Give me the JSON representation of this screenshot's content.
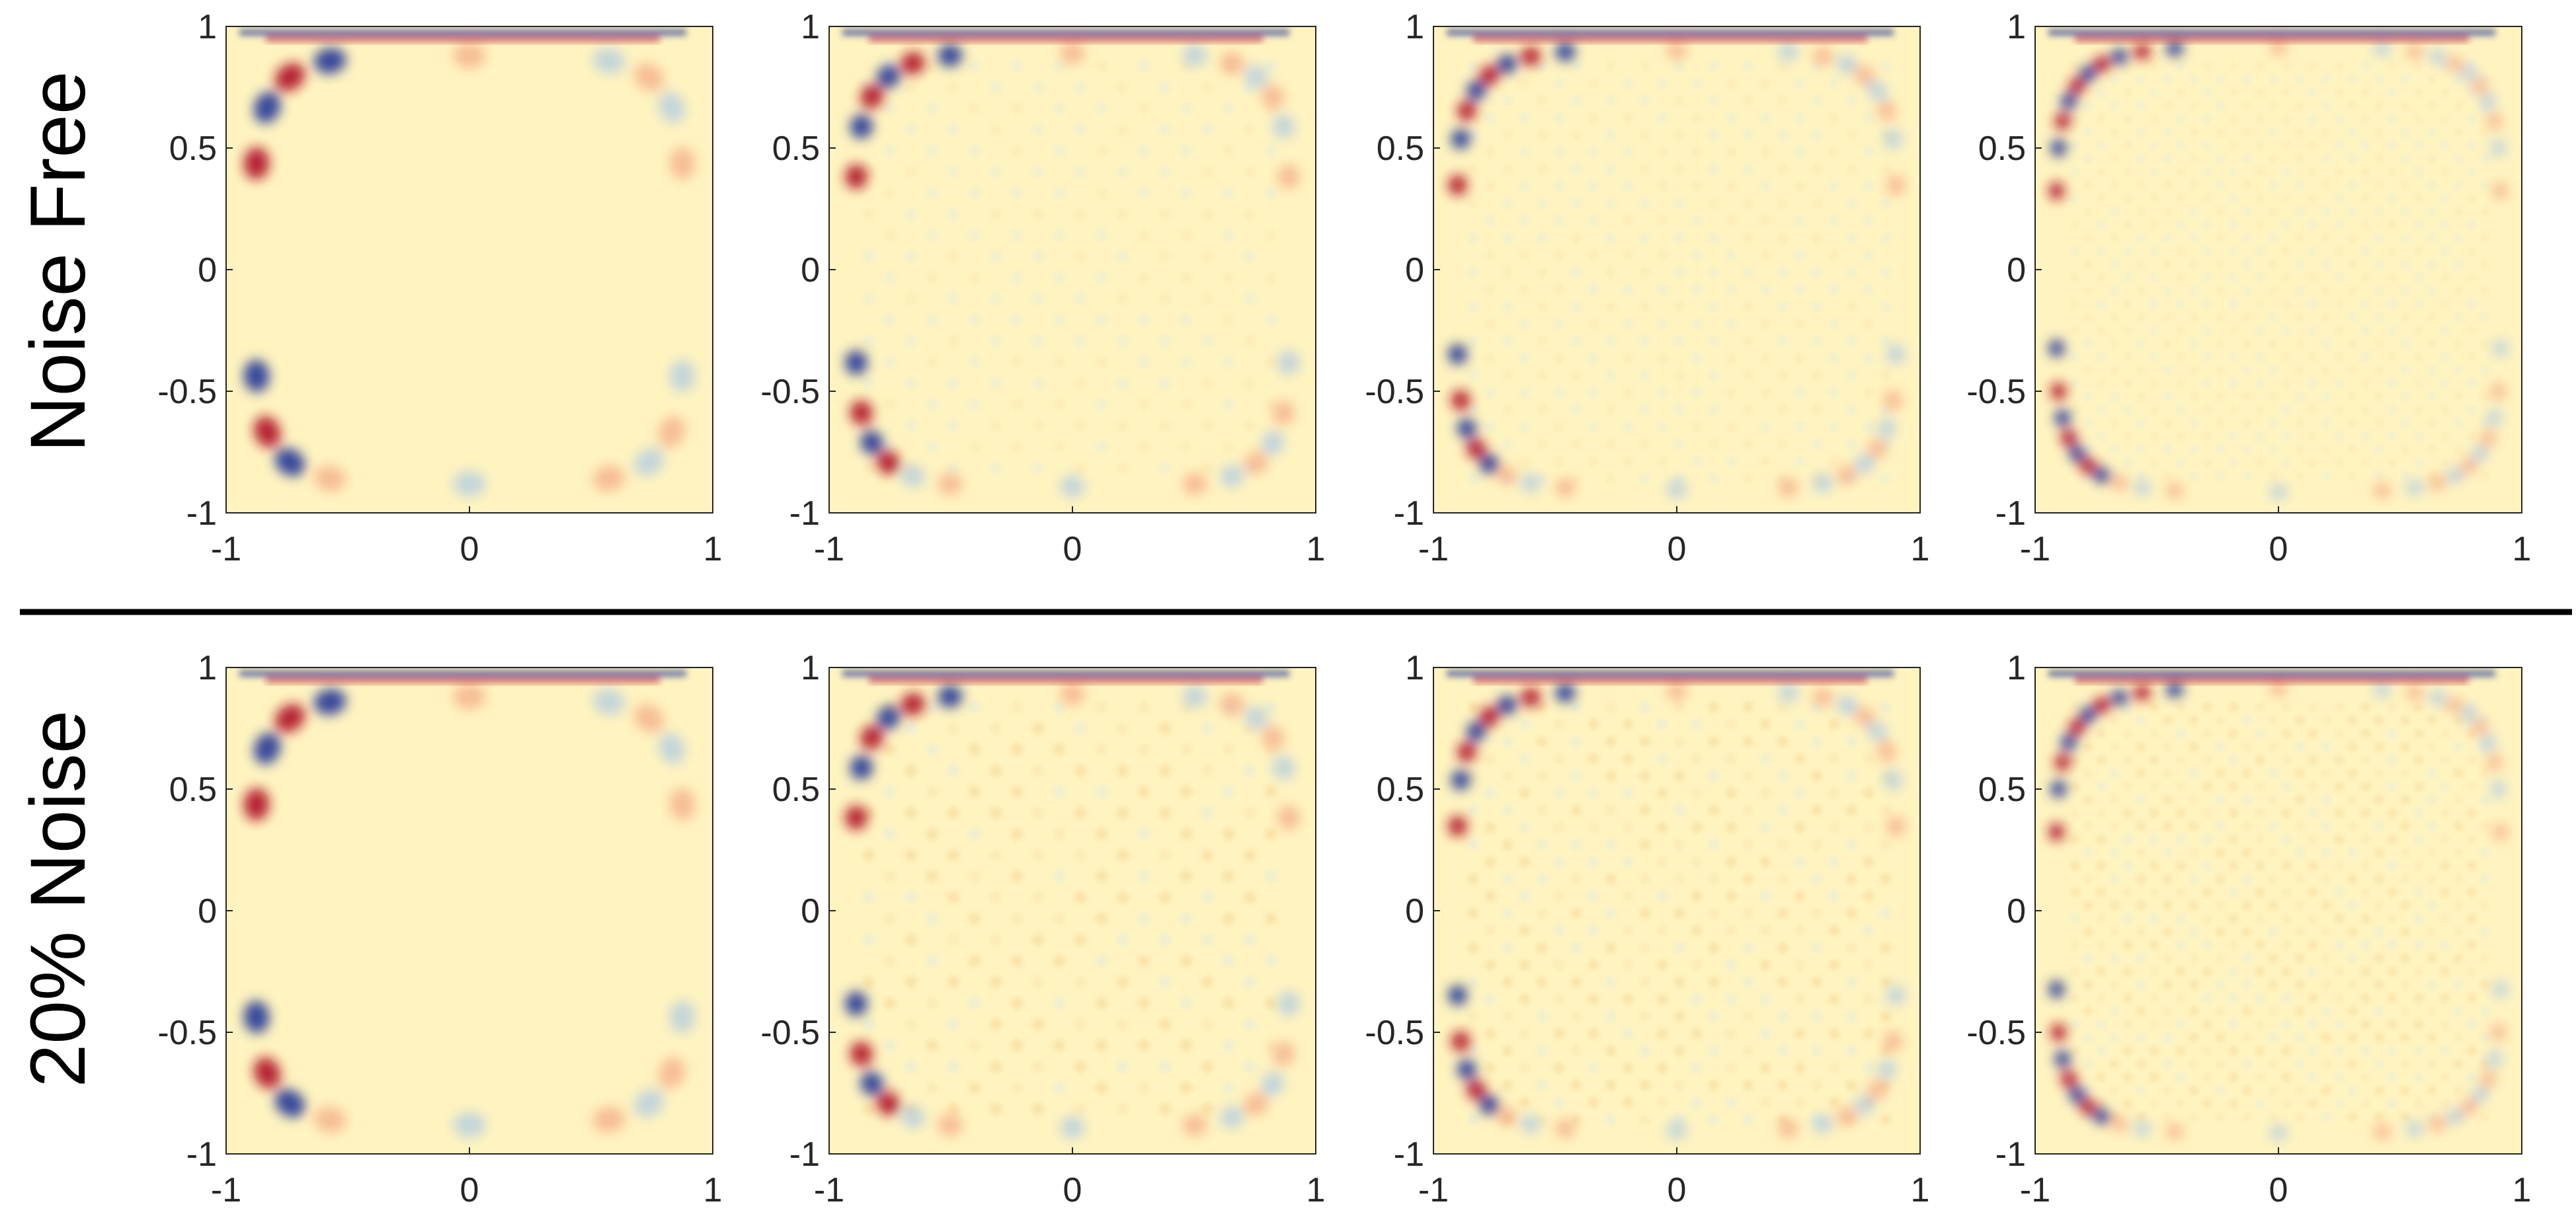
{
  "row_labels": [
    "Noise Free",
    "20% Noise"
  ],
  "colors": {
    "background_field": "#fff4c0",
    "positive": "#b2182b",
    "negative": "#2c3f99",
    "light_positive": "#f4a582",
    "light_negative": "#a9c9e6",
    "axis": "#262626",
    "divider": "#000000"
  },
  "chart_data": [
    {
      "type": "heatmap",
      "row": "Noise Free",
      "mode_index": 1,
      "xlim": [
        -1,
        1
      ],
      "ylim": [
        -1,
        1
      ],
      "x_ticks": [
        -1,
        0,
        1
      ],
      "y_ticks": [
        -1,
        -0.5,
        0,
        0.5,
        1
      ],
      "x_tick_labels": [
        "-1",
        "0",
        "1"
      ],
      "y_tick_labels": [
        "-1",
        "-0.5",
        "0",
        "0.5",
        "1"
      ],
      "colormap": "red-yellow-blue (diverging)",
      "grid": false
    },
    {
      "type": "heatmap",
      "row": "Noise Free",
      "mode_index": 2,
      "xlim": [
        -1,
        1
      ],
      "ylim": [
        -1,
        1
      ],
      "x_ticks": [
        -1,
        0,
        1
      ],
      "y_ticks": [
        -1,
        -0.5,
        0,
        0.5,
        1
      ],
      "x_tick_labels": [
        "-1",
        "0",
        "1"
      ],
      "y_tick_labels": [
        "-1",
        "-0.5",
        "0",
        "0.5",
        "1"
      ],
      "colormap": "red-yellow-blue (diverging)",
      "grid": false
    },
    {
      "type": "heatmap",
      "row": "Noise Free",
      "mode_index": 3,
      "xlim": [
        -1,
        1
      ],
      "ylim": [
        -1,
        1
      ],
      "x_ticks": [
        -1,
        0,
        1
      ],
      "y_ticks": [
        -1,
        -0.5,
        0,
        0.5,
        1
      ],
      "x_tick_labels": [
        "-1",
        "0",
        "1"
      ],
      "y_tick_labels": [
        "-1",
        "-0.5",
        "0",
        "0.5",
        "1"
      ],
      "colormap": "red-yellow-blue (diverging)",
      "grid": false
    },
    {
      "type": "heatmap",
      "row": "Noise Free",
      "mode_index": 4,
      "xlim": [
        -1,
        1
      ],
      "ylim": [
        -1,
        1
      ],
      "x_ticks": [
        -1,
        0,
        1
      ],
      "y_ticks": [
        -1,
        -0.5,
        0,
        0.5,
        1
      ],
      "x_tick_labels": [
        "-1",
        "0",
        "1"
      ],
      "y_tick_labels": [
        "-1",
        "-0.5",
        "0",
        "0.5",
        "1"
      ],
      "colormap": "red-yellow-blue (diverging)",
      "grid": false
    },
    {
      "type": "heatmap",
      "row": "20% Noise",
      "mode_index": 1,
      "xlim": [
        -1,
        1
      ],
      "ylim": [
        -1,
        1
      ],
      "x_ticks": [
        -1,
        0,
        1
      ],
      "y_ticks": [
        -1,
        -0.5,
        0,
        0.5,
        1
      ],
      "x_tick_labels": [
        "-1",
        "0",
        "1"
      ],
      "y_tick_labels": [
        "-1",
        "-0.5",
        "0",
        "0.5",
        "1"
      ],
      "colormap": "red-yellow-blue (diverging)",
      "grid": false
    },
    {
      "type": "heatmap",
      "row": "20% Noise",
      "mode_index": 2,
      "xlim": [
        -1,
        1
      ],
      "ylim": [
        -1,
        1
      ],
      "x_ticks": [
        -1,
        0,
        1
      ],
      "y_ticks": [
        -1,
        -0.5,
        0,
        0.5,
        1
      ],
      "x_tick_labels": [
        "-1",
        "0",
        "1"
      ],
      "y_tick_labels": [
        "-1",
        "-0.5",
        "0",
        "0.5",
        "1"
      ],
      "colormap": "red-yellow-blue (diverging)",
      "grid": false
    },
    {
      "type": "heatmap",
      "row": "20% Noise",
      "mode_index": 3,
      "xlim": [
        -1,
        1
      ],
      "ylim": [
        -1,
        1
      ],
      "x_ticks": [
        -1,
        0,
        1
      ],
      "y_ticks": [
        -1,
        -0.5,
        0,
        0.5,
        1
      ],
      "x_tick_labels": [
        "-1",
        "0",
        "1"
      ],
      "y_tick_labels": [
        "-1",
        "-0.5",
        "0",
        "0.5",
        "1"
      ],
      "colormap": "red-yellow-blue (diverging)",
      "grid": false
    },
    {
      "type": "heatmap",
      "row": "20% Noise",
      "mode_index": 4,
      "xlim": [
        -1,
        1
      ],
      "ylim": [
        -1,
        1
      ],
      "x_ticks": [
        -1,
        0,
        1
      ],
      "y_ticks": [
        -1,
        -0.5,
        0,
        0.5,
        1
      ],
      "x_tick_labels": [
        "-1",
        "0",
        "1"
      ],
      "y_tick_labels": [
        "-1",
        "-0.5",
        "0",
        "0.5",
        "1"
      ],
      "colormap": "red-yellow-blue (diverging)",
      "grid": false
    }
  ]
}
